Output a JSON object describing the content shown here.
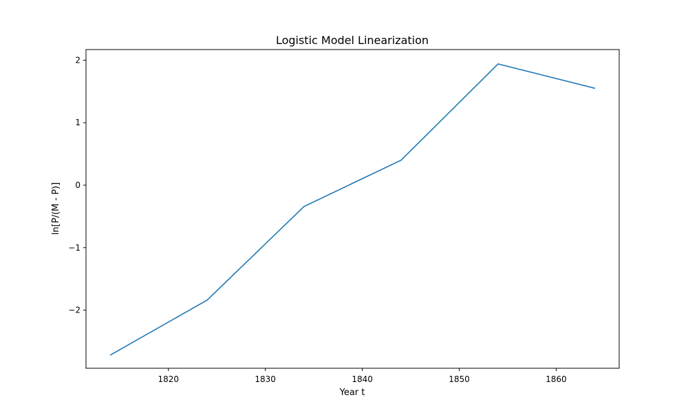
{
  "chart_data": {
    "type": "line",
    "title": "Logistic Model Linearization",
    "xlabel": "Year t",
    "ylabel": "ln[P/(M - P)]",
    "x": [
      1814,
      1824,
      1834,
      1844,
      1854,
      1864
    ],
    "series": [
      {
        "values": [
          -2.72,
          -1.84,
          -0.34,
          0.4,
          1.94,
          1.55
        ],
        "color": "#1f77b4"
      }
    ],
    "xlim": [
      1811.5,
      1866.5
    ],
    "ylim": [
      -2.93,
      2.17
    ],
    "xticks": [
      1820,
      1830,
      1840,
      1850,
      1860
    ],
    "yticks": [
      -2,
      -1,
      0,
      1,
      2
    ],
    "xtick_labels": [
      "1820",
      "1830",
      "1840",
      "1850",
      "1860"
    ],
    "ytick_labels": [
      "−2",
      "−1",
      "0",
      "1",
      "2"
    ],
    "grid": false,
    "legend": "none"
  }
}
